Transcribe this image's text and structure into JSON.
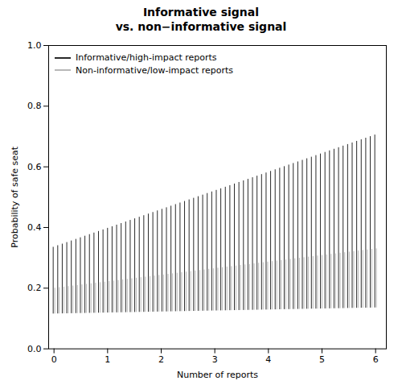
{
  "chart_data": {
    "type": "range",
    "title": "Informative signal\nvs. non−informative signal",
    "x_label": "Number of reports",
    "y_label": "Probability of safe seat",
    "xlim": [
      -0.1,
      6.2
    ],
    "ylim": [
      0.0,
      1.0
    ],
    "xticks": [
      0,
      1,
      2,
      3,
      4,
      5,
      6
    ],
    "yticks": [
      {
        "value": 0.0,
        "label": "0.0"
      },
      0.2,
      0.4,
      0.6,
      0.8,
      {
        "value": 1.0,
        "label": "1.0"
      }
    ],
    "legend": "upper left",
    "grid": false,
    "x": [
      0,
      0.0845,
      0.169,
      0.2535,
      0.338,
      0.4225,
      0.507,
      0.5915,
      0.6761,
      0.7606,
      0.8451,
      0.9296,
      1.0141,
      1.0986,
      1.1831,
      1.2676,
      1.3521,
      1.4366,
      1.5211,
      1.6056,
      1.6901,
      1.7746,
      1.8592,
      1.9437,
      2.0282,
      2.1127,
      2.1972,
      2.2817,
      2.3662,
      2.4507,
      2.5352,
      2.6197,
      2.7042,
      2.7887,
      2.8732,
      2.9577,
      3.0423,
      3.1268,
      3.2113,
      3.2958,
      3.3803,
      3.4648,
      3.5493,
      3.6338,
      3.7183,
      3.8028,
      3.8873,
      3.9718,
      4.0563,
      4.1408,
      4.2254,
      4.3099,
      4.3944,
      4.4789,
      4.5634,
      4.6479,
      4.7324,
      4.8169,
      4.9014,
      4.9859,
      5.0704,
      5.1549,
      5.2394,
      5.3239,
      5.4085,
      5.493,
      5.5775,
      5.662,
      5.7465,
      5.831,
      5.9155,
      6
    ],
    "series": [
      {
        "name": "Informative/high-impact reports",
        "color": "#2a2a2a",
        "low": [
          0.115,
          0.1153,
          0.1156,
          0.1158,
          0.1161,
          0.1164,
          0.1167,
          0.117,
          0.1173,
          0.1175,
          0.1178,
          0.1181,
          0.1184,
          0.1187,
          0.1189,
          0.1192,
          0.1195,
          0.1198,
          0.1201,
          0.1204,
          0.1206,
          0.1209,
          0.1212,
          0.1215,
          0.1218,
          0.122,
          0.1223,
          0.1226,
          0.1229,
          0.1232,
          0.1235,
          0.1237,
          0.124,
          0.1243,
          0.1246,
          0.1249,
          0.1251,
          0.1254,
          0.1257,
          0.126,
          0.1263,
          0.1265,
          0.1268,
          0.1271,
          0.1274,
          0.1277,
          0.128,
          0.1282,
          0.1285,
          0.1288,
          0.1291,
          0.1294,
          0.1296,
          0.1299,
          0.1302,
          0.1305,
          0.1308,
          0.1311,
          0.1313,
          0.1316,
          0.1319,
          0.1322,
          0.1325,
          0.1327,
          0.133,
          0.1333,
          0.1336,
          0.1339,
          0.1342,
          0.1344,
          0.1347,
          0.135
        ],
        "high": [
          0.335,
          0.3402,
          0.3454,
          0.3506,
          0.3558,
          0.3611,
          0.3663,
          0.3715,
          0.3767,
          0.3819,
          0.3871,
          0.3923,
          0.3975,
          0.4027,
          0.408,
          0.4132,
          0.4184,
          0.4236,
          0.4288,
          0.434,
          0.4392,
          0.4444,
          0.4496,
          0.4549,
          0.4601,
          0.4653,
          0.4705,
          0.4757,
          0.4809,
          0.4861,
          0.4913,
          0.4965,
          0.5018,
          0.507,
          0.5122,
          0.5174,
          0.5226,
          0.5278,
          0.533,
          0.5382,
          0.5435,
          0.5487,
          0.5539,
          0.5591,
          0.5643,
          0.5695,
          0.5747,
          0.5799,
          0.5851,
          0.5904,
          0.5956,
          0.6008,
          0.606,
          0.6112,
          0.6164,
          0.6216,
          0.6268,
          0.632,
          0.6373,
          0.6425,
          0.6477,
          0.6529,
          0.6581,
          0.6633,
          0.6685,
          0.6737,
          0.6789,
          0.6842,
          0.6894,
          0.6946,
          0.6998,
          0.705
        ]
      },
      {
        "name": "Non-informative/low-impact reports",
        "color": "#b8b8b8",
        "low": [
          0.115,
          0.1153,
          0.1156,
          0.1158,
          0.1161,
          0.1164,
          0.1167,
          0.117,
          0.1173,
          0.1175,
          0.1178,
          0.1181,
          0.1184,
          0.1187,
          0.1189,
          0.1192,
          0.1195,
          0.1198,
          0.1201,
          0.1204,
          0.1206,
          0.1209,
          0.1212,
          0.1215,
          0.1218,
          0.122,
          0.1223,
          0.1226,
          0.1229,
          0.1232,
          0.1235,
          0.1237,
          0.124,
          0.1243,
          0.1246,
          0.1249,
          0.1251,
          0.1254,
          0.1257,
          0.126,
          0.1263,
          0.1265,
          0.1268,
          0.1271,
          0.1274,
          0.1277,
          0.128,
          0.1282,
          0.1285,
          0.1288,
          0.1291,
          0.1294,
          0.1296,
          0.1299,
          0.1302,
          0.1305,
          0.1308,
          0.1311,
          0.1313,
          0.1316,
          0.1319,
          0.1322,
          0.1325,
          0.1327,
          0.133,
          0.1333,
          0.1336,
          0.1339,
          0.1342,
          0.1344,
          0.1347,
          0.135
        ],
        "high": [
          0.2,
          0.2018,
          0.2037,
          0.2055,
          0.2073,
          0.2092,
          0.211,
          0.2128,
          0.2146,
          0.2165,
          0.2183,
          0.2201,
          0.222,
          0.2238,
          0.2256,
          0.2275,
          0.2293,
          0.2311,
          0.233,
          0.2348,
          0.2366,
          0.2385,
          0.2403,
          0.2421,
          0.2439,
          0.2458,
          0.2476,
          0.2494,
          0.2513,
          0.2531,
          0.2549,
          0.2568,
          0.2586,
          0.2604,
          0.2623,
          0.2641,
          0.2659,
          0.2677,
          0.2696,
          0.2714,
          0.2732,
          0.2751,
          0.2769,
          0.2787,
          0.2806,
          0.2824,
          0.2842,
          0.2861,
          0.2879,
          0.2897,
          0.2915,
          0.2934,
          0.2952,
          0.297,
          0.2989,
          0.3007,
          0.3025,
          0.3044,
          0.3062,
          0.308,
          0.3099,
          0.3117,
          0.3135,
          0.3154,
          0.3172,
          0.319,
          0.3208,
          0.3227,
          0.3245,
          0.3263,
          0.3282,
          0.33
        ]
      }
    ]
  }
}
